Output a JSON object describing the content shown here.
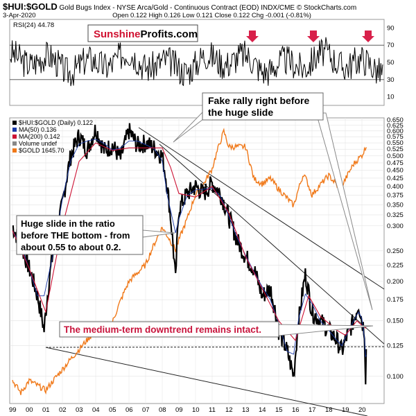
{
  "header": {
    "symbol": "$HUI:$GOLD",
    "description": "Gold Bugs Index - NYSE Arca/Gold - Continuous Contract (EOD)  INDX/CME",
    "credit": "© StockCharts.com",
    "date": "3-Apr-2020",
    "ohlc": "Open 0.122  High 0.126  Low 0.121  Close 0.122  Chg -0.001 (-0.81%)"
  },
  "watermark": {
    "part1": "Sunshine",
    "part2": "Profits.com"
  },
  "rsi_panel": {
    "label": "RSI(24) 44.78",
    "ticks": [
      "90",
      "70",
      "50",
      "30",
      "10"
    ]
  },
  "legend": {
    "items": [
      {
        "text": "$HUI:$GOLD (Daily) 0.122",
        "color": "#000000"
      },
      {
        "text": "MA(50) 0.136",
        "color": "#1a3aa8"
      },
      {
        "text": "MA(200) 0.142",
        "color": "#cc1133"
      },
      {
        "text": "Volume undef",
        "color": "#888888"
      },
      {
        "text": "$GOLD 1645.70",
        "color": "#f07818"
      }
    ]
  },
  "annotations": {
    "fake_rally": [
      "Fake rally right before",
      "the huge slide"
    ],
    "huge_slide": [
      "Huge slide in the ratio",
      "before THE bottom - from",
      "about 0.55 to about 0.2."
    ],
    "downtrend": "The medium-term downtrend remains intact."
  },
  "colors": {
    "ratio": "#000000",
    "ma50": "#1a3aa8",
    "ma200": "#cc1133",
    "gold": "#f07818",
    "arrow": "#d8204a",
    "annotation_red": "#c8143c"
  },
  "chart_data": {
    "type": "line",
    "title": "$HUI:$GOLD",
    "x_ticks": [
      "99",
      "00",
      "01",
      "02",
      "03",
      "04",
      "05",
      "06",
      "07",
      "08",
      "09",
      "10",
      "11",
      "12",
      "13",
      "14",
      "15",
      "16",
      "17",
      "18",
      "19",
      "20"
    ],
    "y_ticks": [
      "0.650",
      "0.625",
      "0.600",
      "0.575",
      "0.550",
      "0.525",
      "0.500",
      "0.475",
      "0.450",
      "0.425",
      "0.400",
      "0.375",
      "0.350",
      "0.325",
      "0.300",
      "0.250",
      "0.225",
      "0.200",
      "0.175",
      "0.150",
      "0.125",
      "0.100"
    ],
    "series": [
      {
        "name": "$HUI:$GOLD (Daily)",
        "x": [
          1999.0,
          1999.5,
          2000.0,
          2000.5,
          2000.9,
          2001.5,
          2002.0,
          2002.5,
          2003.0,
          2003.5,
          2004.0,
          2004.5,
          2005.0,
          2005.5,
          2006.0,
          2006.5,
          2007.0,
          2007.5,
          2008.0,
          2008.3,
          2008.8,
          2009.0,
          2009.5,
          2010.0,
          2010.5,
          2011.0,
          2011.5,
          2012.0,
          2012.5,
          2013.0,
          2013.5,
          2014.0,
          2014.5,
          2015.0,
          2015.5,
          2015.9,
          2016.2,
          2016.6,
          2017.0,
          2017.5,
          2018.0,
          2018.5,
          2018.8,
          2019.0,
          2019.5,
          2019.8,
          2020.0,
          2020.15,
          2020.22,
          2020.26
        ],
        "y": [
          0.3,
          0.26,
          0.22,
          0.18,
          0.14,
          0.26,
          0.35,
          0.5,
          0.58,
          0.52,
          0.61,
          0.52,
          0.54,
          0.49,
          0.6,
          0.54,
          0.55,
          0.53,
          0.5,
          0.4,
          0.2,
          0.34,
          0.38,
          0.4,
          0.38,
          0.41,
          0.38,
          0.32,
          0.27,
          0.24,
          0.22,
          0.18,
          0.19,
          0.14,
          0.12,
          0.1,
          0.15,
          0.21,
          0.16,
          0.15,
          0.14,
          0.13,
          0.12,
          0.13,
          0.15,
          0.17,
          0.15,
          0.14,
          0.1,
          0.122
        ]
      },
      {
        "name": "MA(200)",
        "x": [
          1999.0,
          2000.0,
          2001.0,
          2002.0,
          2003.0,
          2004.0,
          2005.0,
          2006.0,
          2007.0,
          2008.0,
          2008.5,
          2009.0,
          2010.0,
          2011.0,
          2012.0,
          2013.0,
          2014.0,
          2015.0,
          2016.0,
          2016.8,
          2017.5,
          2018.5,
          2019.0,
          2019.7,
          2020.0,
          2020.26
        ],
        "y": [
          0.29,
          0.22,
          0.16,
          0.3,
          0.48,
          0.55,
          0.52,
          0.53,
          0.53,
          0.53,
          0.46,
          0.38,
          0.37,
          0.4,
          0.33,
          0.24,
          0.19,
          0.15,
          0.13,
          0.18,
          0.155,
          0.14,
          0.135,
          0.15,
          0.145,
          0.142
        ]
      },
      {
        "name": "$GOLD",
        "x": [
          1999.0,
          1999.5,
          2000.0,
          2001.0,
          2002.0,
          2003.0,
          2004.0,
          2005.0,
          2006.0,
          2007.0,
          2008.0,
          2008.8,
          2009.5,
          2010.0,
          2010.5,
          2011.0,
          2011.7,
          2012.0,
          2012.5,
          2013.0,
          2013.5,
          2014.0,
          2014.5,
          2015.0,
          2015.9,
          2016.5,
          2017.0,
          2018.0,
          2018.7,
          2019.0,
          2019.5,
          2020.0,
          2020.26
        ],
        "y": [
          285,
          260,
          285,
          265,
          310,
          360,
          415,
          440,
          600,
          680,
          900,
          760,
          960,
          1150,
          1250,
          1400,
          1850,
          1650,
          1650,
          1650,
          1300,
          1250,
          1300,
          1200,
          1060,
          1350,
          1150,
          1330,
          1200,
          1290,
          1450,
          1550,
          1645
        ]
      }
    ]
  }
}
